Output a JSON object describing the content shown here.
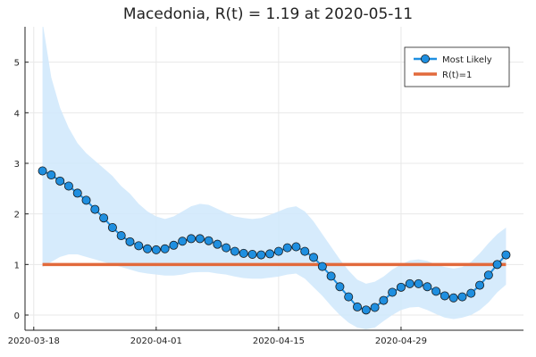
{
  "chart_data": {
    "type": "line",
    "title": "Macedonia, R(t) = 1.19 at 2020-05-11",
    "xlabel": "",
    "ylabel": "",
    "x_tick_labels": [
      "2020-03-18",
      "2020-04-01",
      "2020-04-15",
      "2020-04-29"
    ],
    "y_tick_labels": [
      "0",
      "1",
      "2",
      "3",
      "4",
      "5"
    ],
    "ylim": [
      -0.3,
      5.7
    ],
    "xlim": [
      "2020-03-17",
      "2020-05-13"
    ],
    "grid": true,
    "legend_position": "top-right",
    "x": [
      "2020-03-19",
      "2020-03-20",
      "2020-03-21",
      "2020-03-22",
      "2020-03-23",
      "2020-03-24",
      "2020-03-25",
      "2020-03-26",
      "2020-03-27",
      "2020-03-28",
      "2020-03-29",
      "2020-03-30",
      "2020-03-31",
      "2020-04-01",
      "2020-04-02",
      "2020-04-03",
      "2020-04-04",
      "2020-04-05",
      "2020-04-06",
      "2020-04-07",
      "2020-04-08",
      "2020-04-09",
      "2020-04-10",
      "2020-04-11",
      "2020-04-12",
      "2020-04-13",
      "2020-04-14",
      "2020-04-15",
      "2020-04-16",
      "2020-04-17",
      "2020-04-18",
      "2020-04-19",
      "2020-04-20",
      "2020-04-21",
      "2020-04-22",
      "2020-04-23",
      "2020-04-24",
      "2020-04-25",
      "2020-04-26",
      "2020-04-27",
      "2020-04-28",
      "2020-04-29",
      "2020-04-30",
      "2020-05-01",
      "2020-05-02",
      "2020-05-03",
      "2020-05-04",
      "2020-05-05",
      "2020-05-06",
      "2020-05-07",
      "2020-05-08",
      "2020-05-09",
      "2020-05-10",
      "2020-05-11"
    ],
    "series": [
      {
        "name": "Most Likely",
        "color": "#1f8fe0",
        "marker": "circle",
        "values": [
          2.85,
          2.77,
          2.65,
          2.55,
          2.41,
          2.27,
          2.09,
          1.92,
          1.73,
          1.57,
          1.45,
          1.37,
          1.31,
          1.29,
          1.31,
          1.38,
          1.46,
          1.51,
          1.51,
          1.47,
          1.4,
          1.33,
          1.26,
          1.22,
          1.2,
          1.19,
          1.21,
          1.26,
          1.33,
          1.35,
          1.26,
          1.14,
          0.96,
          0.77,
          0.56,
          0.36,
          0.16,
          0.1,
          0.15,
          0.29,
          0.45,
          0.55,
          0.62,
          0.62,
          0.56,
          0.47,
          0.38,
          0.34,
          0.36,
          0.43,
          0.59,
          0.79,
          1.0,
          1.19
        ]
      },
      {
        "name": "R(t)=1",
        "color": "#e26a3c",
        "marker": "none",
        "values": [
          1,
          1,
          1,
          1,
          1,
          1,
          1,
          1,
          1,
          1,
          1,
          1,
          1,
          1,
          1,
          1,
          1,
          1,
          1,
          1,
          1,
          1,
          1,
          1,
          1,
          1,
          1,
          1,
          1,
          1,
          1,
          1,
          1,
          1,
          1,
          1,
          1,
          1,
          1,
          1,
          1,
          1,
          1,
          1,
          1,
          1,
          1,
          1,
          1,
          1,
          1,
          1,
          1,
          1
        ]
      }
    ],
    "band": {
      "color": "#cfe8fb",
      "upper": [
        5.8,
        4.7,
        4.1,
        3.7,
        3.4,
        3.2,
        3.05,
        2.9,
        2.75,
        2.55,
        2.4,
        2.2,
        2.05,
        1.95,
        1.9,
        1.95,
        2.05,
        2.15,
        2.2,
        2.18,
        2.1,
        2.02,
        1.95,
        1.92,
        1.9,
        1.92,
        1.98,
        2.05,
        2.12,
        2.15,
        2.05,
        1.85,
        1.6,
        1.35,
        1.1,
        0.88,
        0.7,
        0.62,
        0.66,
        0.76,
        0.9,
        1.0,
        1.08,
        1.1,
        1.07,
        1.0,
        0.95,
        0.92,
        0.95,
        1.05,
        1.22,
        1.42,
        1.6,
        1.73
      ],
      "lower": [
        0.95,
        1.05,
        1.15,
        1.2,
        1.2,
        1.15,
        1.1,
        1.05,
        1.0,
        0.95,
        0.9,
        0.85,
        0.82,
        0.8,
        0.78,
        0.78,
        0.8,
        0.84,
        0.85,
        0.85,
        0.82,
        0.8,
        0.76,
        0.73,
        0.72,
        0.72,
        0.74,
        0.76,
        0.8,
        0.82,
        0.72,
        0.55,
        0.38,
        0.18,
        0.0,
        -0.15,
        -0.25,
        -0.28,
        -0.25,
        -0.12,
        0.0,
        0.1,
        0.15,
        0.16,
        0.1,
        0.02,
        -0.05,
        -0.08,
        -0.05,
        0.0,
        0.1,
        0.25,
        0.45,
        0.6
      ]
    }
  }
}
